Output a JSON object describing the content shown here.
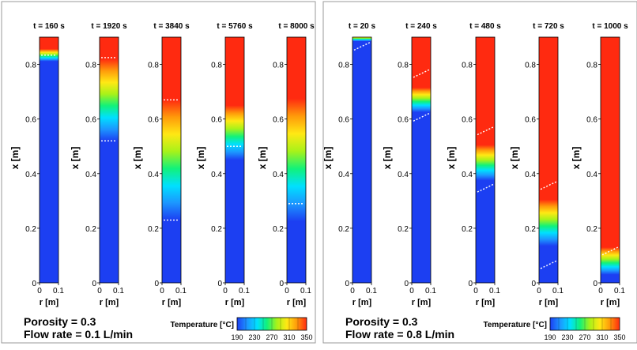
{
  "chart_data": [
    {
      "type": "heatmap",
      "panels": [
        {
          "time": "t = 160 s",
          "front": 0.834,
          "transition": 0.045
        },
        {
          "time": "t = 1920 s",
          "front": 0.67,
          "transition": 0.3
        },
        {
          "time": "t = 3840 s",
          "front": 0.45,
          "transition": 0.44
        },
        {
          "time": "t = 5760 s",
          "front": 0.55,
          "transition": 0.2
        },
        {
          "time": "t = 8000 s",
          "front": 0.45,
          "transition": 0.45
        }
      ],
      "isolines": [
        [
          0.834
        ],
        [
          0.825,
          0.52
        ],
        [
          0.67,
          0.23
        ],
        [
          0.5
        ],
        [
          0.29
        ]
      ],
      "ylabel": "x [m]",
      "xlabel": "r [m]",
      "xlim": [
        0,
        0.1
      ],
      "ylim": [
        0,
        0.9
      ],
      "x_ticks": [
        "0",
        "0.1"
      ],
      "y_ticks": [
        "0",
        "0.2",
        "0.4",
        "0.6",
        "0.8"
      ],
      "y_tick_values": [
        0,
        0.2,
        0.4,
        0.6,
        0.8
      ],
      "caption": [
        "Porosity = 0.3",
        "Flow rate = 0.1 L/min"
      ],
      "colorbar": {
        "title": "Temperature [°C]",
        "ticks": [
          "190",
          "230",
          "270",
          "310",
          "350"
        ],
        "range": [
          190,
          350
        ]
      }
    },
    {
      "type": "heatmap",
      "panels": [
        {
          "time": "t = 20 s",
          "front": 0.895,
          "transition": 0.02
        },
        {
          "time": "t = 240 s",
          "front": 0.67,
          "transition": 0.09
        },
        {
          "time": "t = 480 s",
          "front": 0.44,
          "transition": 0.13
        },
        {
          "time": "t = 720 s",
          "front": 0.22,
          "transition": 0.17
        },
        {
          "time": "t = 1000 s",
          "front": 0.08,
          "transition": 0.1
        }
      ],
      "isolines": [
        [
          0.87
        ],
        [
          0.77,
          0.61
        ],
        [
          0.56,
          0.35
        ],
        [
          0.36,
          0.07
        ],
        [
          0.12
        ]
      ],
      "ylabel": "x [m]",
      "xlabel": "r [m]",
      "xlim": [
        0,
        0.1
      ],
      "ylim": [
        0,
        0.9
      ],
      "x_ticks": [
        "0",
        "0.1"
      ],
      "y_ticks": [
        "0",
        "0.2",
        "0.4",
        "0.6",
        "0.8"
      ],
      "y_tick_values": [
        0,
        0.2,
        0.4,
        0.6,
        0.8
      ],
      "caption": [
        "Porosity = 0.3",
        "Flow rate = 0.8 L/min"
      ],
      "colorbar": {
        "title": "Temperature [°C]",
        "ticks": [
          "190",
          "230",
          "270",
          "310",
          "350"
        ],
        "range": [
          190,
          350
        ]
      }
    }
  ],
  "colors": {
    "cold": "#1c3ff2",
    "hot": "#ff2a10",
    "scale": [
      "#1c3ff2",
      "#1c96ff",
      "#00e0ff",
      "#11f27a",
      "#a8f219",
      "#ffe814",
      "#ff9a0a",
      "#ff2a10"
    ]
  }
}
